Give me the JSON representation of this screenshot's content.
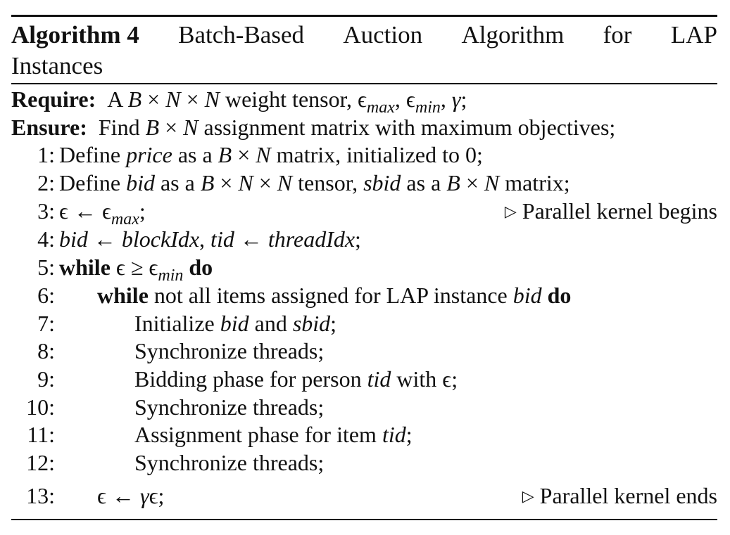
{
  "algorithm": {
    "label": "Algorithm 4",
    "title_words": [
      "Batch-Based",
      "Auction",
      "Algorithm",
      "for",
      "LAP"
    ],
    "title_line2": "Instances",
    "require_label": "Require:",
    "require_text": "A B × N × N weight tensor, ϵmax, ϵmin, γ;",
    "ensure_label": "Ensure:",
    "ensure_text": "Find B × N assignment matrix with maximum objectives;",
    "lines": [
      {
        "num": "1:",
        "text": "Define price as a B × N matrix, initialized to 0;"
      },
      {
        "num": "2:",
        "text": "Define bid as a B × N × N tensor, sbid as a B × N matrix;"
      },
      {
        "num": "3:",
        "text": "ϵ ← ϵmax;",
        "comment": "Parallel kernel begins"
      },
      {
        "num": "4:",
        "text": "bid ← blockIdx, tid ← threadIdx;"
      },
      {
        "num": "5:",
        "text": "while ϵ ≥ ϵmin do"
      },
      {
        "num": "6:",
        "text": "while not all items assigned for LAP instance bid do"
      },
      {
        "num": "7:",
        "text": "Initialize bid and sbid;"
      },
      {
        "num": "8:",
        "text": "Synchronize threads;"
      },
      {
        "num": "9:",
        "text": "Bidding phase for person tid with ϵ;"
      },
      {
        "num": "10:",
        "text": "Synchronize threads;"
      },
      {
        "num": "11:",
        "text": "Assignment phase for item tid;"
      },
      {
        "num": "12:",
        "text": "Synchronize threads;"
      },
      {
        "num": "13:",
        "text": "ϵ ← γϵ;",
        "comment": "Parallel kernel ends"
      }
    ]
  }
}
